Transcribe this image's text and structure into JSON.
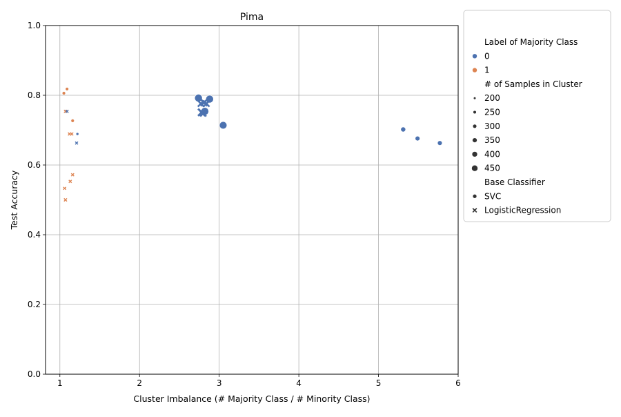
{
  "chart_data": {
    "type": "scatter",
    "title": "Pima",
    "xlabel": "Cluster Imbalance (# Majority Class / # Minority Class)",
    "ylabel": "Test Accuracy",
    "xlim": [
      0.82,
      6.0
    ],
    "ylim": [
      0.0,
      1.0
    ],
    "xticks": [
      1,
      2,
      3,
      4,
      5,
      6
    ],
    "yticks": [
      0.0,
      0.2,
      0.4,
      0.6,
      0.8,
      1.0
    ],
    "grid": true,
    "colors": {
      "0": "#4c72b0",
      "1": "#dd8452"
    },
    "legend": {
      "placement": "outside-right",
      "hue_title": "Label of Majority Class",
      "hue_entries": [
        {
          "label": "0",
          "color": "#4c72b0"
        },
        {
          "label": "1",
          "color": "#dd8452"
        }
      ],
      "size_title": "# of Samples in Cluster",
      "size_entries": [
        "200",
        "250",
        "300",
        "350",
        "400",
        "450"
      ],
      "style_title": "Base Classifier",
      "style_entries": [
        {
          "label": "SVC",
          "marker": "circle"
        },
        {
          "label": "LogisticRegression",
          "marker": "x"
        }
      ]
    },
    "points": [
      {
        "x": 1.05,
        "y": 0.806,
        "label": "1",
        "size": 230,
        "clf": "SVC"
      },
      {
        "x": 1.09,
        "y": 0.818,
        "label": "1",
        "size": 230,
        "clf": "SVC"
      },
      {
        "x": 1.07,
        "y": 0.754,
        "label": "1",
        "size": 210,
        "clf": "LogisticRegression"
      },
      {
        "x": 1.09,
        "y": 0.754,
        "label": "0",
        "size": 210,
        "clf": "LogisticRegression"
      },
      {
        "x": 1.16,
        "y": 0.727,
        "label": "1",
        "size": 230,
        "clf": "SVC"
      },
      {
        "x": 1.12,
        "y": 0.689,
        "label": "1",
        "size": 210,
        "clf": "LogisticRegression"
      },
      {
        "x": 1.15,
        "y": 0.689,
        "label": "1",
        "size": 210,
        "clf": "LogisticRegression"
      },
      {
        "x": 1.22,
        "y": 0.689,
        "label": "0",
        "size": 205,
        "clf": "SVC"
      },
      {
        "x": 1.21,
        "y": 0.663,
        "label": "0",
        "size": 205,
        "clf": "LogisticRegression"
      },
      {
        "x": 1.16,
        "y": 0.572,
        "label": "1",
        "size": 210,
        "clf": "LogisticRegression"
      },
      {
        "x": 1.13,
        "y": 0.553,
        "label": "1",
        "size": 210,
        "clf": "LogisticRegression"
      },
      {
        "x": 1.06,
        "y": 0.533,
        "label": "1",
        "size": 205,
        "clf": "LogisticRegression"
      },
      {
        "x": 1.07,
        "y": 0.5,
        "label": "1",
        "size": 215,
        "clf": "LogisticRegression"
      },
      {
        "x": 2.74,
        "y": 0.792,
        "label": "0",
        "size": 450,
        "clf": "SVC"
      },
      {
        "x": 2.88,
        "y": 0.789,
        "label": "0",
        "size": 450,
        "clf": "SVC"
      },
      {
        "x": 2.81,
        "y": 0.779,
        "label": "0",
        "size": 420,
        "clf": "LogisticRegression"
      },
      {
        "x": 2.77,
        "y": 0.776,
        "label": "0",
        "size": 380,
        "clf": "LogisticRegression"
      },
      {
        "x": 2.84,
        "y": 0.776,
        "label": "0",
        "size": 380,
        "clf": "LogisticRegression"
      },
      {
        "x": 2.82,
        "y": 0.754,
        "label": "0",
        "size": 450,
        "clf": "SVC"
      },
      {
        "x": 2.78,
        "y": 0.751,
        "label": "0",
        "size": 440,
        "clf": "LogisticRegression"
      },
      {
        "x": 2.8,
        "y": 0.748,
        "label": "0",
        "size": 380,
        "clf": "LogisticRegression"
      },
      {
        "x": 3.05,
        "y": 0.714,
        "label": "0",
        "size": 440,
        "clf": "SVC"
      },
      {
        "x": 5.31,
        "y": 0.702,
        "label": "0",
        "size": 310,
        "clf": "SVC"
      },
      {
        "x": 5.49,
        "y": 0.676,
        "label": "0",
        "size": 300,
        "clf": "SVC"
      },
      {
        "x": 5.77,
        "y": 0.663,
        "label": "0",
        "size": 300,
        "clf": "SVC"
      }
    ]
  }
}
